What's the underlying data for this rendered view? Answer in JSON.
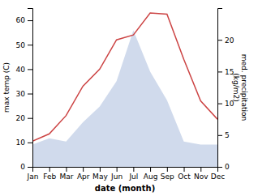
{
  "chart_data": {
    "type": "line",
    "categories": [
      "Jan",
      "Feb",
      "Mar",
      "Apr",
      "May",
      "Jun",
      "Jul",
      "Aug",
      "Sep",
      "Oct",
      "Nov",
      "Dec"
    ],
    "series": [
      {
        "type": "area",
        "axis": "y2",
        "color": "#aabbdd",
        "values": [
          3.5,
          4.5,
          4.0,
          7.0,
          9.5,
          13.5,
          21.5,
          15.0,
          10.5,
          4.0,
          3.5,
          3.5
        ]
      },
      {
        "type": "line",
        "color": "#cc4444",
        "values": [
          10.5,
          13.5,
          21.0,
          33.0,
          40.0,
          52.0,
          54.0,
          63.0,
          62.5,
          44.0,
          27.0,
          19.5
        ]
      }
    ],
    "xlabel": "date (month)",
    "ylabel": "max temp (C)",
    "y2label": "med. precipitation\n(kg/m2)",
    "ylim": [
      0,
      65
    ],
    "yticks": [
      0,
      10,
      20,
      30,
      40,
      50,
      60
    ],
    "y2lim": [
      0,
      25
    ],
    "y2ticks": [
      0,
      5,
      10,
      15,
      20
    ],
    "grid": false
  }
}
